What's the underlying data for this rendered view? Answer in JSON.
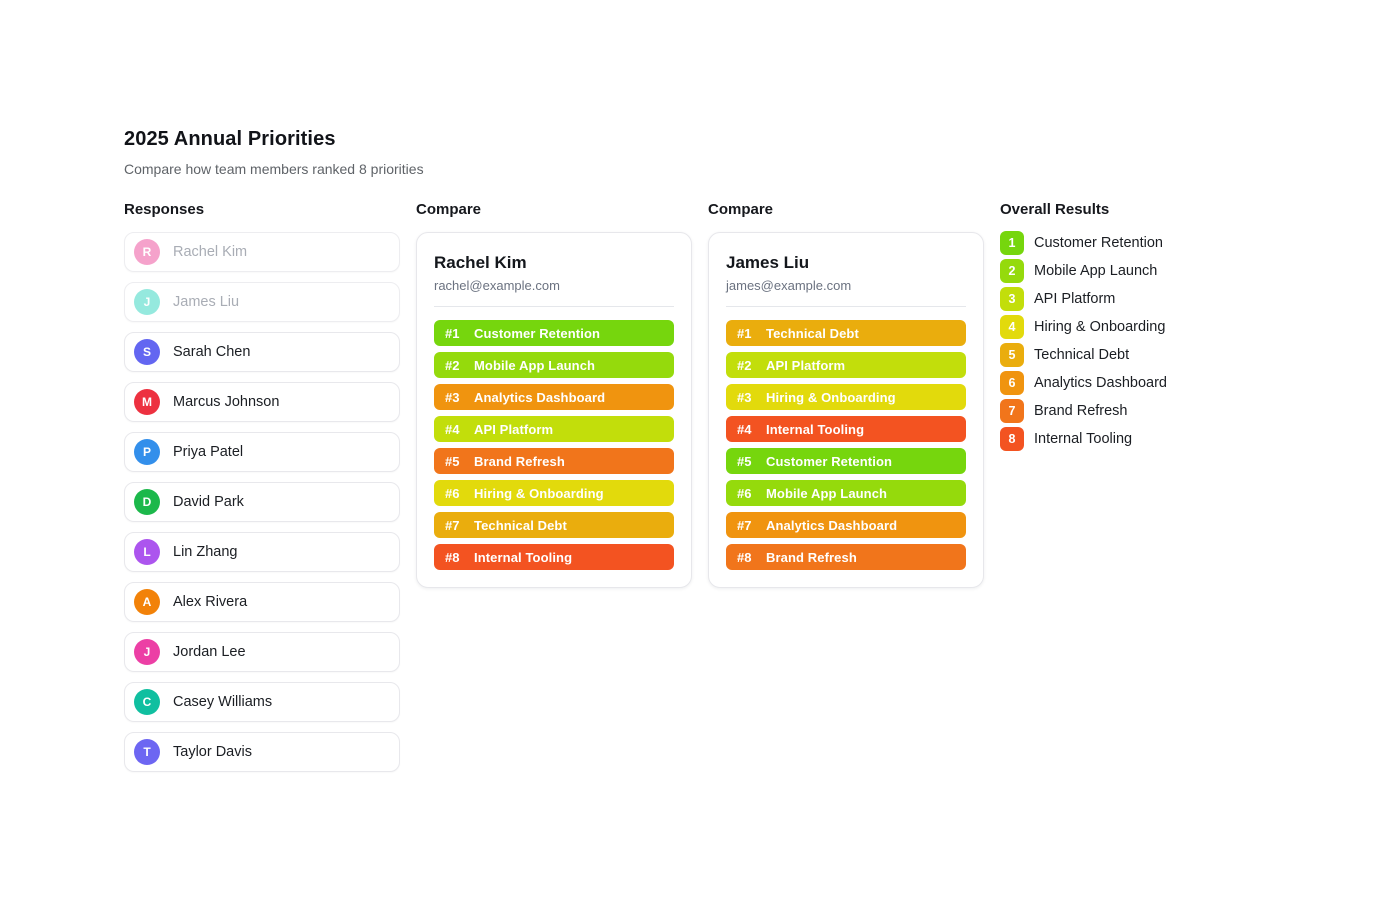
{
  "page": {
    "title": "2025 Annual Priorities",
    "subtitle": "Compare how team members ranked 8 priorities"
  },
  "sections": {
    "responses": "Responses",
    "compare": "Compare",
    "overall": "Overall Results"
  },
  "colors": {
    "rank_scale": [
      "#76D60D",
      "#95DA0C",
      "#C2DE0B",
      "#E2DA0C",
      "#EAAD0D",
      "#F0940F",
      "#F1751B",
      "#F35321"
    ]
  },
  "responses": [
    {
      "initial": "R",
      "name": "Rachel Kim",
      "color": "#EC4899",
      "selected": true
    },
    {
      "initial": "J",
      "name": "James Liu",
      "color": "#2DD4BF",
      "selected": true
    },
    {
      "initial": "S",
      "name": "Sarah Chen",
      "color": "#6366F1",
      "selected": false
    },
    {
      "initial": "M",
      "name": "Marcus Johnson",
      "color": "#ED3140",
      "selected": false
    },
    {
      "initial": "P",
      "name": "Priya Patel",
      "color": "#338FEB",
      "selected": false
    },
    {
      "initial": "D",
      "name": "David Park",
      "color": "#1CB84B",
      "selected": false
    },
    {
      "initial": "L",
      "name": "Lin Zhang",
      "color": "#AC55EE",
      "selected": false
    },
    {
      "initial": "A",
      "name": "Alex Rivera",
      "color": "#F28209",
      "selected": false
    },
    {
      "initial": "J",
      "name": "Jordan Lee",
      "color": "#EC3FA5",
      "selected": false
    },
    {
      "initial": "C",
      "name": "Casey Williams",
      "color": "#10BFA0",
      "selected": false
    },
    {
      "initial": "T",
      "name": "Taylor Davis",
      "color": "#6D66F2",
      "selected": false
    }
  ],
  "compare_cards": [
    {
      "name": "Rachel Kim",
      "email": "rachel@example.com",
      "rankings": [
        {
          "rank": "#1",
          "label": "Customer Retention",
          "color": "#76D60D"
        },
        {
          "rank": "#2",
          "label": "Mobile App Launch",
          "color": "#95DA0C"
        },
        {
          "rank": "#3",
          "label": "Analytics Dashboard",
          "color": "#F0940F"
        },
        {
          "rank": "#4",
          "label": "API Platform",
          "color": "#C2DE0B"
        },
        {
          "rank": "#5",
          "label": "Brand Refresh",
          "color": "#F1751B"
        },
        {
          "rank": "#6",
          "label": "Hiring & Onboarding",
          "color": "#E2DA0C"
        },
        {
          "rank": "#7",
          "label": "Technical Debt",
          "color": "#EAAD0D"
        },
        {
          "rank": "#8",
          "label": "Internal Tooling",
          "color": "#F35321"
        }
      ]
    },
    {
      "name": "James Liu",
      "email": "james@example.com",
      "rankings": [
        {
          "rank": "#1",
          "label": "Technical Debt",
          "color": "#EAAD0D"
        },
        {
          "rank": "#2",
          "label": "API Platform",
          "color": "#C2DE0B"
        },
        {
          "rank": "#3",
          "label": "Hiring & Onboarding",
          "color": "#E2DA0C"
        },
        {
          "rank": "#4",
          "label": "Internal Tooling",
          "color": "#F35321"
        },
        {
          "rank": "#5",
          "label": "Customer Retention",
          "color": "#76D60D"
        },
        {
          "rank": "#6",
          "label": "Mobile App Launch",
          "color": "#95DA0C"
        },
        {
          "rank": "#7",
          "label": "Analytics Dashboard",
          "color": "#F0940F"
        },
        {
          "rank": "#8",
          "label": "Brand Refresh",
          "color": "#F1751B"
        }
      ]
    }
  ],
  "overall_results": [
    {
      "rank": "1",
      "label": "Customer Retention",
      "color": "#76D60D"
    },
    {
      "rank": "2",
      "label": "Mobile App Launch",
      "color": "#95DA0C"
    },
    {
      "rank": "3",
      "label": "API Platform",
      "color": "#C2DE0B"
    },
    {
      "rank": "4",
      "label": "Hiring & Onboarding",
      "color": "#E2DA0C"
    },
    {
      "rank": "5",
      "label": "Technical Debt",
      "color": "#EAAD0D"
    },
    {
      "rank": "6",
      "label": "Analytics Dashboard",
      "color": "#F0940F"
    },
    {
      "rank": "7",
      "label": "Brand Refresh",
      "color": "#F1751B"
    },
    {
      "rank": "8",
      "label": "Internal Tooling",
      "color": "#F35321"
    }
  ]
}
